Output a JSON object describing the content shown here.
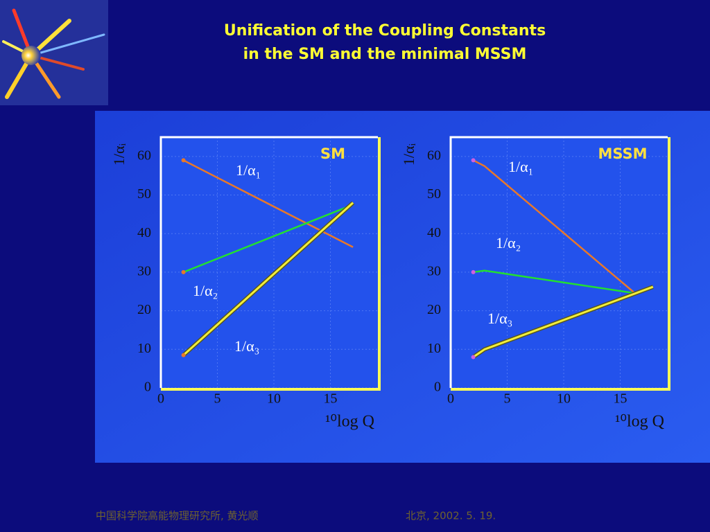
{
  "title_lines": [
    "Unification of the Coupling Constants",
    "in the SM and the minimal MSSM"
  ],
  "footer": [
    "中国科学院高能物理研究所, 黄光顺",
    "北京, 2002. 5. 19."
  ],
  "chart_data": [
    {
      "type": "line",
      "title": "SM",
      "y_label": "1/αᵢ",
      "x_label": "¹⁰log Q",
      "xlim": [
        0,
        19.2
      ],
      "ylim": [
        0,
        65
      ],
      "xticks": [
        0,
        5,
        10,
        15
      ],
      "yticks": [
        0,
        10,
        20,
        30,
        40,
        50,
        60
      ],
      "grid": true,
      "series": [
        {
          "name": "1/α₁",
          "color": "#e8782a",
          "x": [
            2,
            17
          ],
          "values": [
            59,
            36.5
          ]
        },
        {
          "name": "1/α₂",
          "color": "#22e030",
          "x": [
            2,
            17
          ],
          "values": [
            30,
            47.5
          ]
        },
        {
          "name": "1/α₃",
          "color": "#f2ee3a",
          "x": [
            2,
            17
          ],
          "values": [
            8.5,
            48
          ]
        }
      ]
    },
    {
      "type": "line",
      "title": "MSSM",
      "y_label": "1/αᵢ",
      "x_label": "¹⁰log Q",
      "xlim": [
        0,
        19.2
      ],
      "ylim": [
        0,
        65
      ],
      "xticks": [
        0,
        5,
        10,
        15
      ],
      "yticks": [
        0,
        10,
        20,
        30,
        40,
        50,
        60
      ],
      "grid": true,
      "series": [
        {
          "name": "1/α₁",
          "color": "#e8782a",
          "x": [
            2,
            3,
            16.2
          ],
          "values": [
            59,
            57.5,
            24.8
          ]
        },
        {
          "name": "1/α₂",
          "color": "#22e030",
          "x": [
            2,
            3,
            16.2
          ],
          "values": [
            30,
            30.4,
            24.6
          ]
        },
        {
          "name": "1/α₃",
          "color": "#f2ee3a",
          "x": [
            2,
            3,
            17.9
          ],
          "values": [
            8,
            10,
            26.2
          ]
        }
      ]
    }
  ]
}
